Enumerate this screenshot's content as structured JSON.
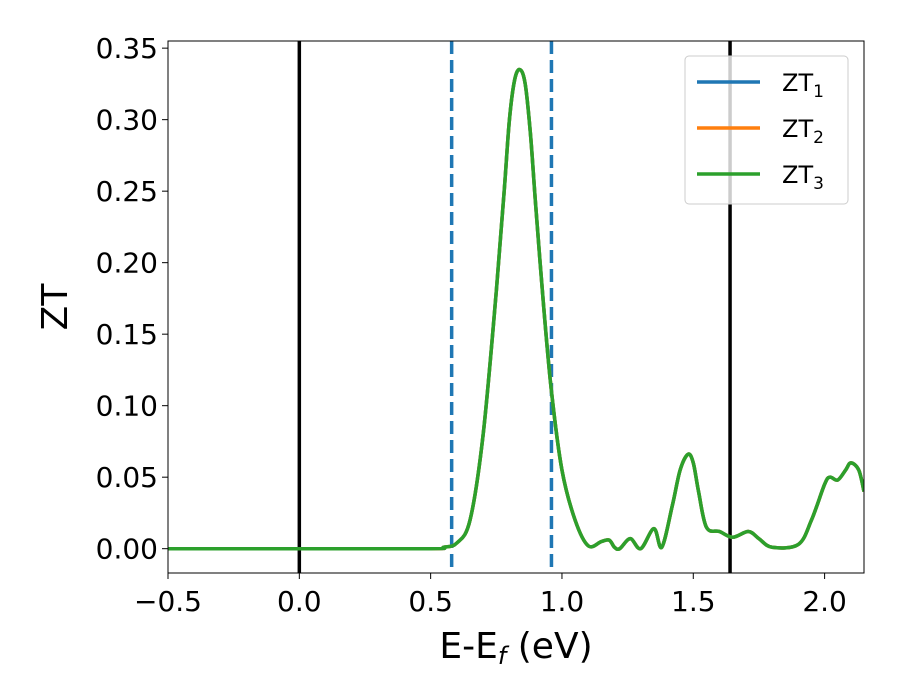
{
  "chart_data": {
    "type": "line",
    "xlabel": "E-E",
    "xlabel_sub": "f",
    "xlabel_unit": " (eV)",
    "ylabel": "ZT",
    "xlim": [
      -0.5,
      2.15
    ],
    "ylim": [
      -0.017,
      0.355
    ],
    "xticks": [
      -0.5,
      0.0,
      0.5,
      1.0,
      1.5,
      2.0
    ],
    "xtick_labels": [
      "−0.5",
      "0.0",
      "0.5",
      "1.0",
      "1.5",
      "2.0"
    ],
    "yticks": [
      0.0,
      0.05,
      0.1,
      0.15,
      0.2,
      0.25,
      0.3,
      0.35
    ],
    "ytick_labels": [
      "0.00",
      "0.05",
      "0.10",
      "0.15",
      "0.20",
      "0.25",
      "0.30",
      "0.35"
    ],
    "grid": false,
    "legend_position": "top-right",
    "vlines": [
      {
        "x": 0.0,
        "style": "solid",
        "color": "#000000"
      },
      {
        "x": 1.64,
        "style": "solid",
        "color": "#000000"
      },
      {
        "x": 0.58,
        "style": "dashed",
        "color": "#1f77b4"
      },
      {
        "x": 0.96,
        "style": "dashed",
        "color": "#1f77b4"
      }
    ],
    "series": [
      {
        "name": "ZT",
        "sub": "1",
        "color": "#1f77b4",
        "x": [
          -0.5,
          0.0,
          0.5,
          0.55,
          0.6,
          0.65,
          0.7,
          0.75,
          0.78,
          0.8,
          0.82,
          0.84,
          0.86,
          0.88,
          0.9,
          0.93,
          0.96,
          1.0,
          1.05,
          1.1,
          1.15,
          1.18,
          1.2,
          1.22,
          1.26,
          1.3,
          1.35,
          1.38,
          1.42,
          1.45,
          1.48,
          1.5,
          1.52,
          1.55,
          1.6,
          1.65,
          1.71,
          1.75,
          1.8,
          1.9,
          1.95,
          2.0,
          2.02,
          2.05,
          2.08,
          2.1,
          2.13,
          2.15
        ],
        "y": [
          0.0,
          0.0,
          0.0,
          0.001,
          0.004,
          0.02,
          0.08,
          0.18,
          0.25,
          0.3,
          0.328,
          0.335,
          0.325,
          0.29,
          0.24,
          0.17,
          0.11,
          0.055,
          0.02,
          0.002,
          0.005,
          0.006,
          0.001,
          0.0,
          0.007,
          0.0,
          0.014,
          0.001,
          0.03,
          0.055,
          0.066,
          0.06,
          0.04,
          0.015,
          0.012,
          0.008,
          0.012,
          0.007,
          0.001,
          0.003,
          0.02,
          0.045,
          0.05,
          0.048,
          0.055,
          0.06,
          0.055,
          0.04
        ]
      },
      {
        "name": "ZT",
        "sub": "2",
        "color": "#ff7f0e",
        "x": [
          -0.5,
          0.0,
          0.5,
          0.55,
          0.6,
          0.65,
          0.7,
          0.75,
          0.78,
          0.8,
          0.82,
          0.84,
          0.86,
          0.88,
          0.9,
          0.93,
          0.96,
          1.0,
          1.05,
          1.1,
          1.15,
          1.18,
          1.2,
          1.22,
          1.26,
          1.3,
          1.35,
          1.38,
          1.42,
          1.45,
          1.48,
          1.5,
          1.52,
          1.55,
          1.6,
          1.65,
          1.71,
          1.75,
          1.8,
          1.9,
          1.95,
          2.0,
          2.02,
          2.05,
          2.08,
          2.1,
          2.13,
          2.15
        ],
        "y": [
          0.0,
          0.0,
          0.0,
          0.001,
          0.004,
          0.02,
          0.08,
          0.18,
          0.25,
          0.3,
          0.328,
          0.335,
          0.325,
          0.29,
          0.24,
          0.17,
          0.11,
          0.055,
          0.02,
          0.002,
          0.005,
          0.006,
          0.001,
          0.0,
          0.007,
          0.0,
          0.014,
          0.001,
          0.03,
          0.055,
          0.066,
          0.06,
          0.04,
          0.015,
          0.012,
          0.008,
          0.012,
          0.007,
          0.001,
          0.003,
          0.02,
          0.045,
          0.05,
          0.048,
          0.055,
          0.06,
          0.055,
          0.04
        ]
      },
      {
        "name": "ZT",
        "sub": "3",
        "color": "#2ca02c",
        "x": [
          -0.5,
          0.0,
          0.5,
          0.55,
          0.6,
          0.65,
          0.7,
          0.75,
          0.78,
          0.8,
          0.82,
          0.84,
          0.86,
          0.88,
          0.9,
          0.93,
          0.96,
          1.0,
          1.05,
          1.1,
          1.15,
          1.18,
          1.2,
          1.22,
          1.26,
          1.3,
          1.35,
          1.38,
          1.42,
          1.45,
          1.48,
          1.5,
          1.52,
          1.55,
          1.6,
          1.65,
          1.71,
          1.75,
          1.8,
          1.9,
          1.95,
          2.0,
          2.02,
          2.05,
          2.08,
          2.1,
          2.13,
          2.15
        ],
        "y": [
          0.0,
          0.0,
          0.0,
          0.001,
          0.004,
          0.02,
          0.08,
          0.18,
          0.25,
          0.3,
          0.328,
          0.335,
          0.325,
          0.29,
          0.24,
          0.17,
          0.11,
          0.055,
          0.02,
          0.002,
          0.005,
          0.006,
          0.001,
          0.0,
          0.007,
          0.0,
          0.014,
          0.001,
          0.03,
          0.055,
          0.066,
          0.06,
          0.04,
          0.015,
          0.012,
          0.008,
          0.012,
          0.007,
          0.001,
          0.003,
          0.02,
          0.045,
          0.05,
          0.048,
          0.055,
          0.06,
          0.055,
          0.04
        ]
      }
    ]
  }
}
